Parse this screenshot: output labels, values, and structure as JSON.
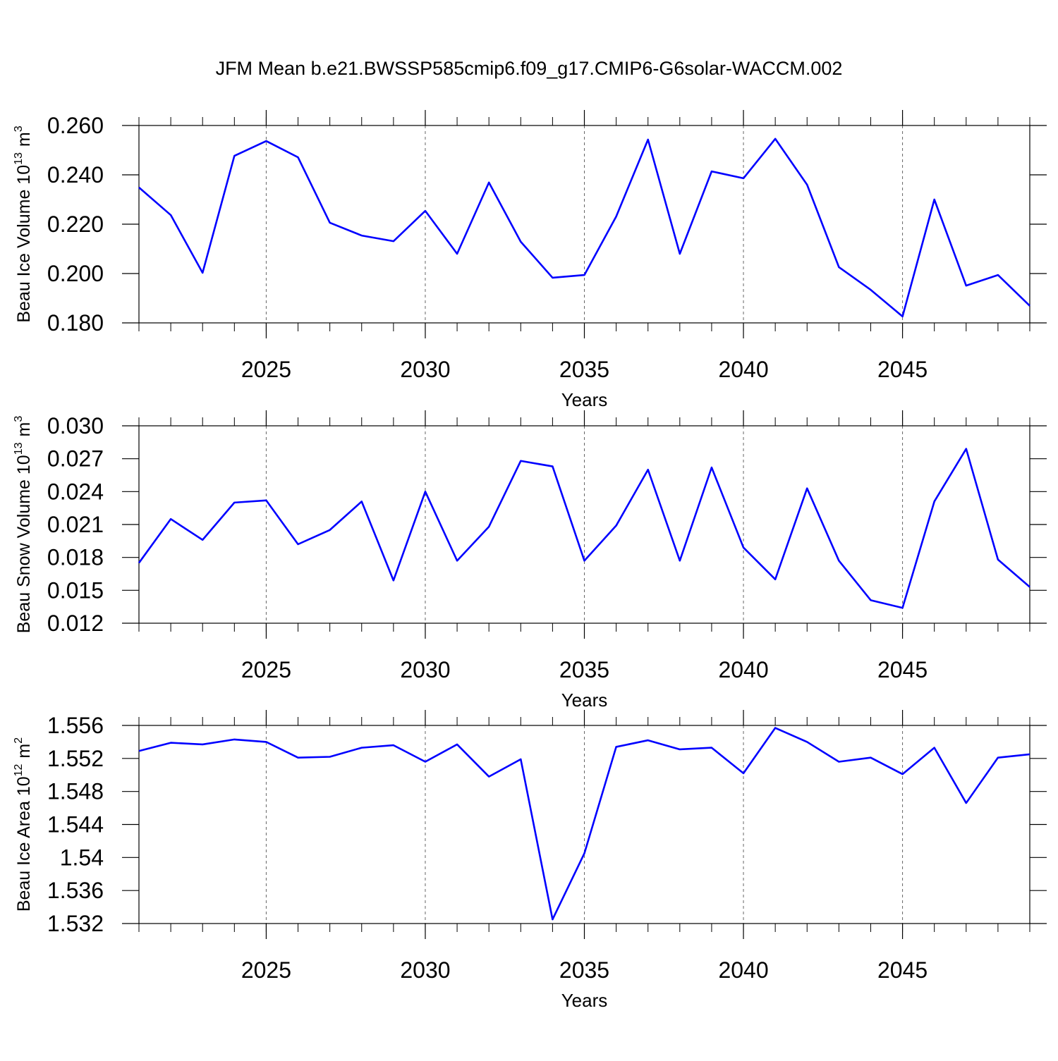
{
  "chart_data": [
    {
      "type": "line",
      "title": "JFM Mean b.e21.BWSSP585cmip6.f09_g17.CMIP6-G6solar-WACCM.002",
      "xlabel": "Years",
      "ylabel": {
        "base": "Beau Ice Volume 10",
        "power": "13",
        "unit": "m",
        "unit_power": "3"
      },
      "x": [
        2021,
        2022,
        2023,
        2024,
        2025,
        2026,
        2027,
        2028,
        2029,
        2030,
        2031,
        2032,
        2033,
        2034,
        2035,
        2036,
        2037,
        2038,
        2039,
        2040,
        2041,
        2042,
        2043,
        2044,
        2045,
        2046,
        2047,
        2048,
        2049
      ],
      "values": [
        0.2349,
        0.2237,
        0.2003,
        0.2477,
        0.2537,
        0.2471,
        0.2206,
        0.2154,
        0.2131,
        0.2254,
        0.208,
        0.2369,
        0.2129,
        0.1983,
        0.1994,
        0.2231,
        0.2543,
        0.208,
        0.2414,
        0.2386,
        0.2546,
        0.236,
        0.2026,
        0.1934,
        0.1826,
        0.23,
        0.1951,
        0.1994,
        0.1869
      ],
      "color": "#0000ff",
      "xlim": [
        2021,
        2049
      ],
      "ylim": [
        0.18,
        0.26
      ],
      "xticks": [
        2025,
        2030,
        2035,
        2040,
        2045
      ],
      "yticks": [
        {
          "value": 0.18,
          "label": "0.180"
        },
        {
          "value": 0.2,
          "label": "0.200"
        },
        {
          "value": 0.22,
          "label": "0.220"
        },
        {
          "value": 0.24,
          "label": "0.240"
        },
        {
          "value": 0.26,
          "label": "0.260"
        }
      ],
      "grid": true
    },
    {
      "type": "line",
      "xlabel": "Years",
      "ylabel": {
        "base": "Beau Snow Volume 10",
        "power": "13",
        "unit": "m",
        "unit_power": "3"
      },
      "x": [
        2021,
        2022,
        2023,
        2024,
        2025,
        2026,
        2027,
        2028,
        2029,
        2030,
        2031,
        2032,
        2033,
        2034,
        2035,
        2036,
        2037,
        2038,
        2039,
        2040,
        2041,
        2042,
        2043,
        2044,
        2045,
        2046,
        2047,
        2048,
        2049
      ],
      "values": [
        0.0175,
        0.0215,
        0.0196,
        0.023,
        0.0232,
        0.0192,
        0.0205,
        0.0231,
        0.0159,
        0.024,
        0.0177,
        0.0208,
        0.0268,
        0.0263,
        0.0177,
        0.0209,
        0.026,
        0.0177,
        0.0262,
        0.0189,
        0.016,
        0.0243,
        0.0177,
        0.0141,
        0.0134,
        0.0231,
        0.0279,
        0.0178,
        0.0153
      ],
      "color": "#0000ff",
      "xlim": [
        2021,
        2049
      ],
      "ylim": [
        0.012,
        0.03
      ],
      "xticks": [
        2025,
        2030,
        2035,
        2040,
        2045
      ],
      "yticks": [
        0.012,
        0.015,
        0.018,
        0.021,
        0.024,
        0.027,
        {
          "value": 0.03,
          "label": "0.030"
        }
      ],
      "grid": true
    },
    {
      "type": "line",
      "xlabel": "Years",
      "ylabel": {
        "base": "Beau Ice Area 10",
        "power": "12",
        "unit": "m",
        "unit_power": "2"
      },
      "x": [
        2021,
        2022,
        2023,
        2024,
        2025,
        2026,
        2027,
        2028,
        2029,
        2030,
        2031,
        2032,
        2033,
        2034,
        2035,
        2036,
        2037,
        2038,
        2039,
        2040,
        2041,
        2042,
        2043,
        2044,
        2045,
        2046,
        2047,
        2048,
        2049
      ],
      "values": [
        1.5529,
        1.5539,
        1.5537,
        1.5543,
        1.554,
        1.5521,
        1.5522,
        1.5533,
        1.5536,
        1.5516,
        1.5537,
        1.5498,
        1.5519,
        1.5325,
        1.5405,
        1.5534,
        1.5542,
        1.5531,
        1.5533,
        1.5502,
        1.5557,
        1.554,
        1.5516,
        1.5521,
        1.5501,
        1.5533,
        1.5466,
        1.5521,
        1.5525
      ],
      "color": "#0000ff",
      "xlim": [
        2021,
        2049
      ],
      "ylim": [
        1.532,
        1.556
      ],
      "xticks": [
        2025,
        2030,
        2035,
        2040,
        2045
      ],
      "yticks": [
        1.532,
        1.536,
        1.54,
        1.544,
        1.548,
        1.552,
        1.556
      ],
      "grid": true
    }
  ]
}
